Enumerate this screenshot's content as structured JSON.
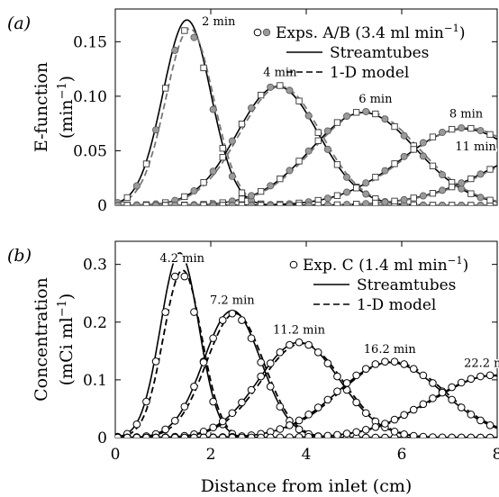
{
  "chart_data": [
    {
      "panel_label": "(a)",
      "type": "line",
      "xlabel": "",
      "ylabel": "E-function",
      "yunit": "(min−1)",
      "ylim": [
        0,
        0.18
      ],
      "xlim": [
        0,
        8
      ],
      "yticks": [
        "0",
        "0.05",
        "0.10",
        "0.15"
      ],
      "ytick_values": [
        0,
        0.05,
        0.1,
        0.15
      ],
      "xticks": [
        0,
        2,
        4,
        6,
        8
      ],
      "show_x_ticklabels": false,
      "legend": {
        "placement": "top-right",
        "entries": [
          {
            "label": "Exps. A/B (3.4 ml min−1)",
            "style": "markers"
          },
          {
            "label": "Streamtubes",
            "style": "solid"
          },
          {
            "label": "1-D model",
            "style": "dashed"
          }
        ]
      },
      "series": [
        {
          "name": "2 min",
          "mu": 1.5,
          "sigma": 0.5,
          "peak_stream": 0.17,
          "peak_model": 0.162,
          "peak_exp": 0.161
        },
        {
          "name": "4 min",
          "mu": 3.4,
          "sigma": 0.85,
          "peak_stream": 0.109,
          "peak_model": 0.109,
          "peak_exp": 0.11
        },
        {
          "name": "6 min",
          "mu": 5.2,
          "sigma": 1.1,
          "peak_stream": 0.085,
          "peak_model": 0.086,
          "peak_exp": 0.086
        },
        {
          "name": "8 min",
          "mu": 7.3,
          "sigma": 1.3,
          "peak_stream": 0.07,
          "peak_model": 0.071,
          "peak_exp": 0.071
        },
        {
          "name": "11 min",
          "mu": 9.6,
          "sigma": 1.6,
          "peak_stream": 0.06,
          "peak_model": 0.06,
          "peak_exp": 0.06
        }
      ]
    },
    {
      "panel_label": "(b)",
      "type": "line",
      "xlabel": "Distance from inlet (cm)",
      "ylabel": "Concentration",
      "yunit": "(mCi ml−1)",
      "ylim": [
        0,
        0.34
      ],
      "xlim": [
        0,
        8
      ],
      "yticks": [
        "0",
        "0.1",
        "0.2",
        "0.3"
      ],
      "ytick_values": [
        0,
        0.1,
        0.2,
        0.3
      ],
      "xticks": [
        "0",
        "2",
        "4",
        "6",
        "8"
      ],
      "xtick_values": [
        0,
        2,
        4,
        6,
        8
      ],
      "legend": {
        "placement": "top-right",
        "entries": [
          {
            "label": "Exp. C (1.4 ml min−1)",
            "style": "markers"
          },
          {
            "label": "Streamtubes",
            "style": "solid"
          },
          {
            "label": "1-D model",
            "style": "dashed"
          }
        ]
      },
      "series": [
        {
          "name": "4.2 min",
          "mu": 1.35,
          "sigma": 0.4,
          "peak_stream": 0.32,
          "peak_model": 0.29,
          "peak_exp": 0.288
        },
        {
          "name": "7.2 min",
          "mu": 2.45,
          "sigma": 0.6,
          "peak_stream": 0.22,
          "peak_model": 0.215,
          "peak_exp": 0.215
        },
        {
          "name": "11.2 min",
          "mu": 3.85,
          "sigma": 0.85,
          "peak_stream": 0.165,
          "peak_model": 0.163,
          "peak_exp": 0.165
        },
        {
          "name": "16.2 min",
          "mu": 5.75,
          "sigma": 1.1,
          "peak_stream": 0.13,
          "peak_model": 0.131,
          "peak_exp": 0.132
        },
        {
          "name": "22.2 min",
          "mu": 7.9,
          "sigma": 1.3,
          "peak_stream": 0.107,
          "peak_model": 0.108,
          "peak_exp": 0.108
        }
      ]
    }
  ]
}
